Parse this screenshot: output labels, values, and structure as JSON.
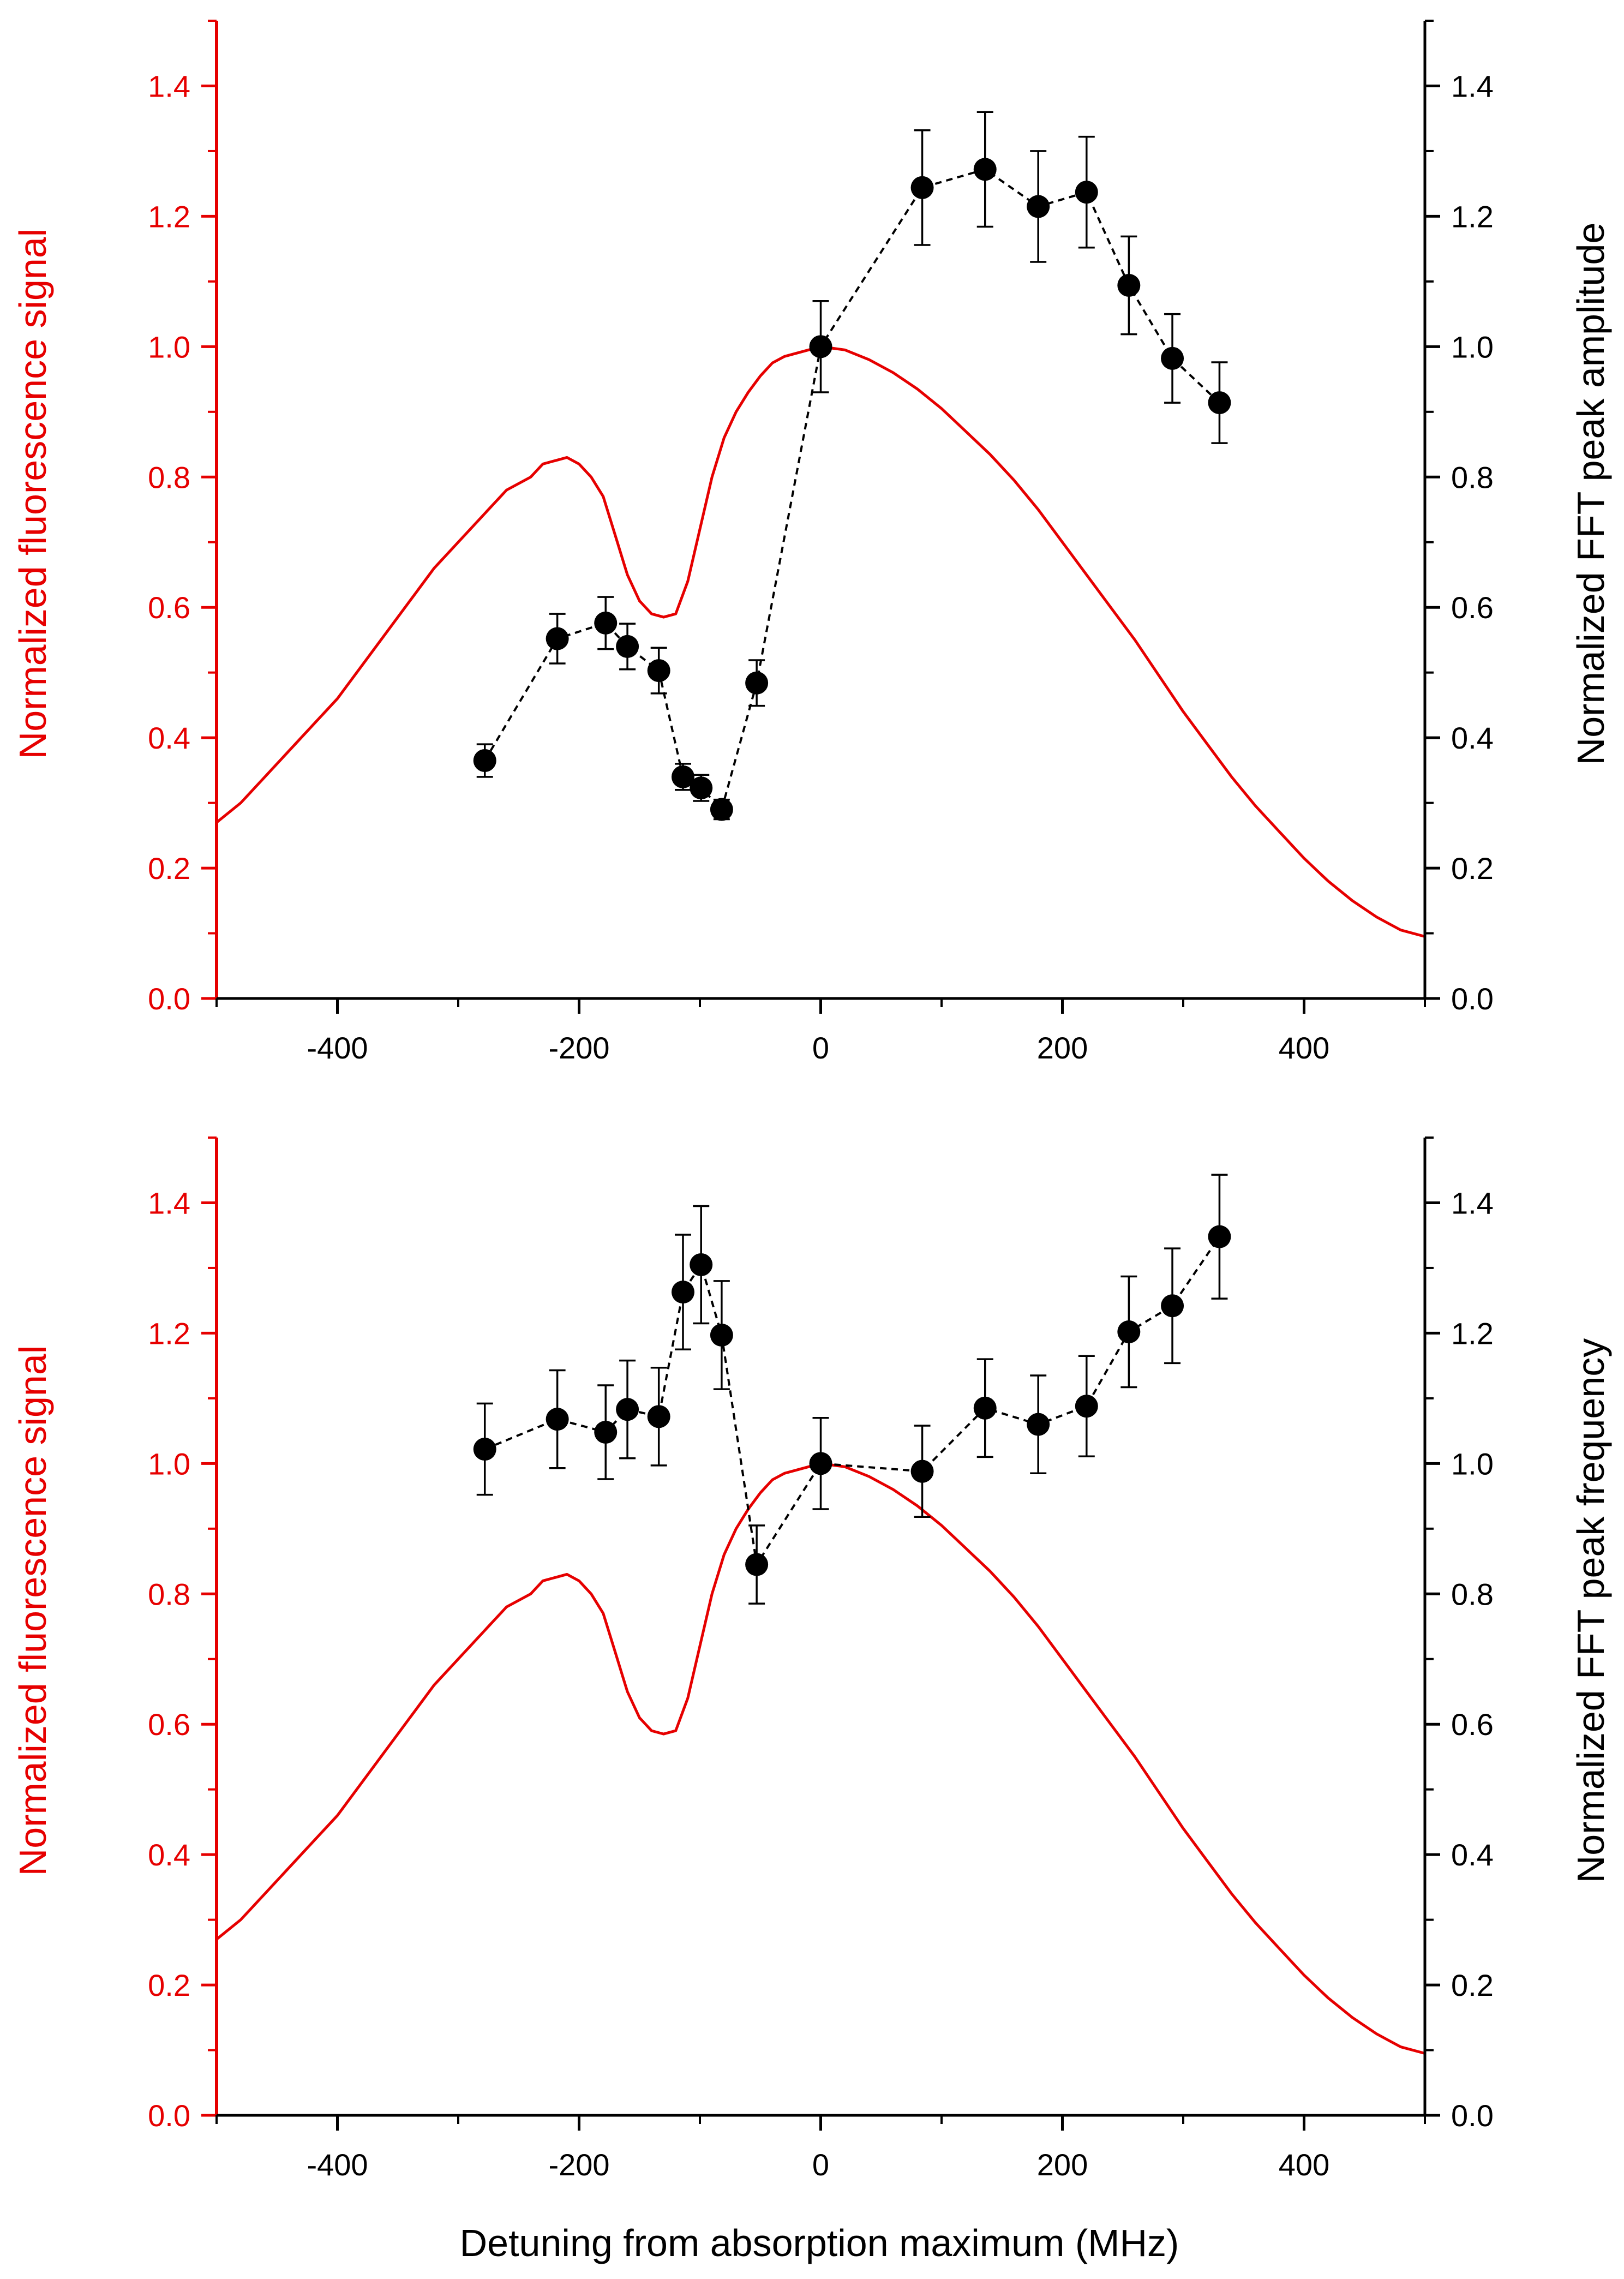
{
  "colors": {
    "fluorescence": "#e60000",
    "fft": "#000000",
    "background": "#ffffff"
  },
  "xlabel": "Detuning from absorption maximum (MHz)",
  "chart_data": [
    {
      "type": "line",
      "panel": "top",
      "title": "",
      "xlabel": "",
      "xlim": [
        -500,
        500
      ],
      "xticks": [
        -400,
        -200,
        0,
        200,
        400
      ],
      "xtick_labels": [
        "-400",
        "-200",
        "0",
        "200",
        "400"
      ],
      "ylabel_left": "Normalized fluorescence signal",
      "ylabel_right": "Normalized FFT peak amplitude",
      "ylim": [
        0,
        1.5
      ],
      "yticks": [
        0.0,
        0.2,
        0.4,
        0.6,
        0.8,
        1.0,
        1.2,
        1.4
      ],
      "ytick_labels": [
        "0.0",
        "0.2",
        "0.4",
        "0.6",
        "0.8",
        "1.0",
        "1.2",
        "1.4"
      ],
      "series": [
        {
          "name": "Normalized fluorescence signal",
          "axis": "left",
          "style": "solid line",
          "x": [
            -500,
            -480,
            -460,
            -440,
            -420,
            -400,
            -380,
            -360,
            -340,
            -320,
            -300,
            -280,
            -260,
            -240,
            -230,
            -220,
            -210,
            -200,
            -190,
            -180,
            -170,
            -160,
            -150,
            -140,
            -130,
            -120,
            -110,
            -100,
            -90,
            -80,
            -70,
            -60,
            -50,
            -40,
            -30,
            -20,
            -10,
            0,
            20,
            40,
            60,
            80,
            100,
            120,
            140,
            160,
            180,
            200,
            220,
            240,
            260,
            280,
            300,
            320,
            340,
            360,
            380,
            400,
            420,
            440,
            460,
            480,
            500
          ],
          "values": [
            0.27,
            0.3,
            0.34,
            0.38,
            0.42,
            0.46,
            0.51,
            0.56,
            0.61,
            0.66,
            0.7,
            0.74,
            0.78,
            0.8,
            0.82,
            0.825,
            0.83,
            0.82,
            0.8,
            0.77,
            0.71,
            0.65,
            0.61,
            0.59,
            0.585,
            0.59,
            0.64,
            0.72,
            0.8,
            0.86,
            0.9,
            0.93,
            0.955,
            0.975,
            0.985,
            0.99,
            0.995,
            1.0,
            0.995,
            0.98,
            0.96,
            0.935,
            0.905,
            0.87,
            0.835,
            0.795,
            0.75,
            0.7,
            0.65,
            0.6,
            0.55,
            0.495,
            0.44,
            0.39,
            0.34,
            0.295,
            0.255,
            0.215,
            0.18,
            0.15,
            0.125,
            0.105,
            0.095
          ]
        },
        {
          "name": "Normalized FFT peak amplitude",
          "axis": "right",
          "style": "dashed line with circle markers and error bars",
          "x": [
            -278,
            -218,
            -178,
            -160,
            -134,
            -114,
            -99,
            -82,
            -53,
            0,
            84,
            136,
            180,
            220,
            255,
            291,
            330
          ],
          "values": [
            0.365,
            0.552,
            0.576,
            0.54,
            0.503,
            0.34,
            0.323,
            0.29,
            0.484,
            1.0,
            1.244,
            1.272,
            1.215,
            1.237,
            1.094,
            0.982,
            0.914
          ],
          "errors": [
            0.025,
            0.038,
            0.04,
            0.035,
            0.035,
            0.02,
            0.02,
            0.015,
            0.035,
            0.07,
            0.088,
            0.088,
            0.085,
            0.085,
            0.075,
            0.068,
            0.062
          ]
        }
      ]
    },
    {
      "type": "line",
      "panel": "bottom",
      "title": "",
      "xlabel": "Detuning from absorption maximum (MHz)",
      "xlim": [
        -500,
        500
      ],
      "xticks": [
        -400,
        -200,
        0,
        200,
        400
      ],
      "xtick_labels": [
        "-400",
        "-200",
        "0",
        "200",
        "400"
      ],
      "ylabel_left": "Normalized fluorescence signal",
      "ylabel_right": "Normalized FFT peak frequency",
      "ylim": [
        0,
        1.5
      ],
      "yticks": [
        0.0,
        0.2,
        0.4,
        0.6,
        0.8,
        1.0,
        1.2,
        1.4
      ],
      "ytick_labels": [
        "0.0",
        "0.2",
        "0.4",
        "0.6",
        "0.8",
        "1.0",
        "1.2",
        "1.4"
      ],
      "series": [
        {
          "name": "Normalized fluorescence signal",
          "axis": "left",
          "style": "solid line",
          "x": [
            -500,
            -480,
            -460,
            -440,
            -420,
            -400,
            -380,
            -360,
            -340,
            -320,
            -300,
            -280,
            -260,
            -240,
            -230,
            -220,
            -210,
            -200,
            -190,
            -180,
            -170,
            -160,
            -150,
            -140,
            -130,
            -120,
            -110,
            -100,
            -90,
            -80,
            -70,
            -60,
            -50,
            -40,
            -30,
            -20,
            -10,
            0,
            20,
            40,
            60,
            80,
            100,
            120,
            140,
            160,
            180,
            200,
            220,
            240,
            260,
            280,
            300,
            320,
            340,
            360,
            380,
            400,
            420,
            440,
            460,
            480,
            500
          ],
          "values": [
            0.27,
            0.3,
            0.34,
            0.38,
            0.42,
            0.46,
            0.51,
            0.56,
            0.61,
            0.66,
            0.7,
            0.74,
            0.78,
            0.8,
            0.82,
            0.825,
            0.83,
            0.82,
            0.8,
            0.77,
            0.71,
            0.65,
            0.61,
            0.59,
            0.585,
            0.59,
            0.64,
            0.72,
            0.8,
            0.86,
            0.9,
            0.93,
            0.955,
            0.975,
            0.985,
            0.99,
            0.995,
            1.0,
            0.995,
            0.98,
            0.96,
            0.935,
            0.905,
            0.87,
            0.835,
            0.795,
            0.75,
            0.7,
            0.65,
            0.6,
            0.55,
            0.495,
            0.44,
            0.39,
            0.34,
            0.295,
            0.255,
            0.215,
            0.18,
            0.15,
            0.125,
            0.105,
            0.095
          ]
        },
        {
          "name": "Normalized FFT peak frequency",
          "axis": "right",
          "style": "dashed line with circle markers and error bars",
          "x": [
            -278,
            -218,
            -178,
            -160,
            -134,
            -114,
            -99,
            -82,
            -53,
            0,
            84,
            136,
            180,
            220,
            255,
            291,
            330
          ],
          "values": [
            1.022,
            1.068,
            1.048,
            1.083,
            1.072,
            1.263,
            1.305,
            1.197,
            0.845,
            1.0,
            0.988,
            1.085,
            1.06,
            1.088,
            1.202,
            1.242,
            1.348
          ],
          "errors": [
            0.07,
            0.075,
            0.072,
            0.075,
            0.075,
            0.088,
            0.09,
            0.083,
            0.06,
            0.07,
            0.07,
            0.075,
            0.075,
            0.077,
            0.085,
            0.088,
            0.095
          ]
        }
      ]
    }
  ]
}
